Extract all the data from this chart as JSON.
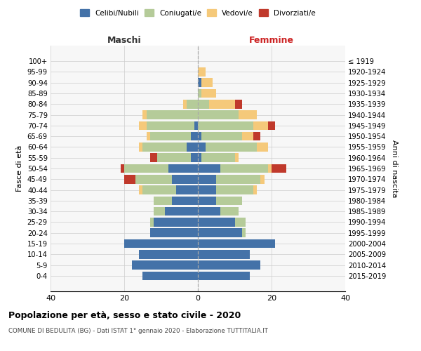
{
  "age_groups": [
    "0-4",
    "5-9",
    "10-14",
    "15-19",
    "20-24",
    "25-29",
    "30-34",
    "35-39",
    "40-44",
    "45-49",
    "50-54",
    "55-59",
    "60-64",
    "65-69",
    "70-74",
    "75-79",
    "80-84",
    "85-89",
    "90-94",
    "95-99",
    "100+"
  ],
  "birth_years": [
    "2015-2019",
    "2010-2014",
    "2005-2009",
    "2000-2004",
    "1995-1999",
    "1990-1994",
    "1985-1989",
    "1980-1984",
    "1975-1979",
    "1970-1974",
    "1965-1969",
    "1960-1964",
    "1955-1959",
    "1950-1954",
    "1945-1949",
    "1940-1944",
    "1935-1939",
    "1930-1934",
    "1925-1929",
    "1920-1924",
    "≤ 1919"
  ],
  "maschi": {
    "celibi": [
      15,
      18,
      16,
      20,
      13,
      12,
      9,
      7,
      6,
      7,
      8,
      2,
      3,
      2,
      1,
      0,
      0,
      0,
      0,
      0,
      0
    ],
    "coniugati": [
      0,
      0,
      0,
      0,
      0,
      1,
      3,
      5,
      9,
      10,
      12,
      9,
      12,
      11,
      13,
      14,
      3,
      0,
      0,
      0,
      0
    ],
    "vedovi": [
      0,
      0,
      0,
      0,
      0,
      0,
      0,
      0,
      1,
      0,
      0,
      0,
      1,
      1,
      2,
      1,
      1,
      0,
      0,
      0,
      0
    ],
    "divorziati": [
      0,
      0,
      0,
      0,
      0,
      0,
      0,
      0,
      0,
      3,
      1,
      2,
      0,
      0,
      0,
      0,
      0,
      0,
      0,
      0,
      0
    ]
  },
  "femmine": {
    "nubili": [
      14,
      17,
      14,
      21,
      12,
      10,
      6,
      5,
      5,
      5,
      6,
      1,
      2,
      1,
      0,
      0,
      0,
      0,
      1,
      0,
      0
    ],
    "coniugate": [
      0,
      0,
      0,
      0,
      1,
      3,
      5,
      7,
      10,
      12,
      13,
      9,
      14,
      11,
      15,
      11,
      3,
      1,
      0,
      0,
      0
    ],
    "vedove": [
      0,
      0,
      0,
      0,
      0,
      0,
      0,
      0,
      1,
      1,
      1,
      1,
      3,
      3,
      4,
      5,
      7,
      4,
      3,
      2,
      0
    ],
    "divorziate": [
      0,
      0,
      0,
      0,
      0,
      0,
      0,
      0,
      0,
      0,
      4,
      0,
      0,
      2,
      2,
      0,
      2,
      0,
      0,
      0,
      0
    ]
  },
  "colors": {
    "celibi": "#4472a8",
    "coniugati": "#b5cb99",
    "vedovi": "#f5c97a",
    "divorziati": "#c0392b"
  },
  "xlim": 40,
  "title": "Popolazione per età, sesso e stato civile - 2020",
  "subtitle": "COMUNE DI BEDULITA (BG) - Dati ISTAT 1° gennaio 2020 - Elaborazione TUTTITALIA.IT",
  "ylabel_left": "Fasce di età",
  "ylabel_right": "Anni di nascita",
  "legend_labels": [
    "Celibi/Nubili",
    "Coniugati/e",
    "Vedovi/e",
    "Divorziati/e"
  ],
  "maschi_label": "Maschi",
  "femmine_label": "Femmine"
}
